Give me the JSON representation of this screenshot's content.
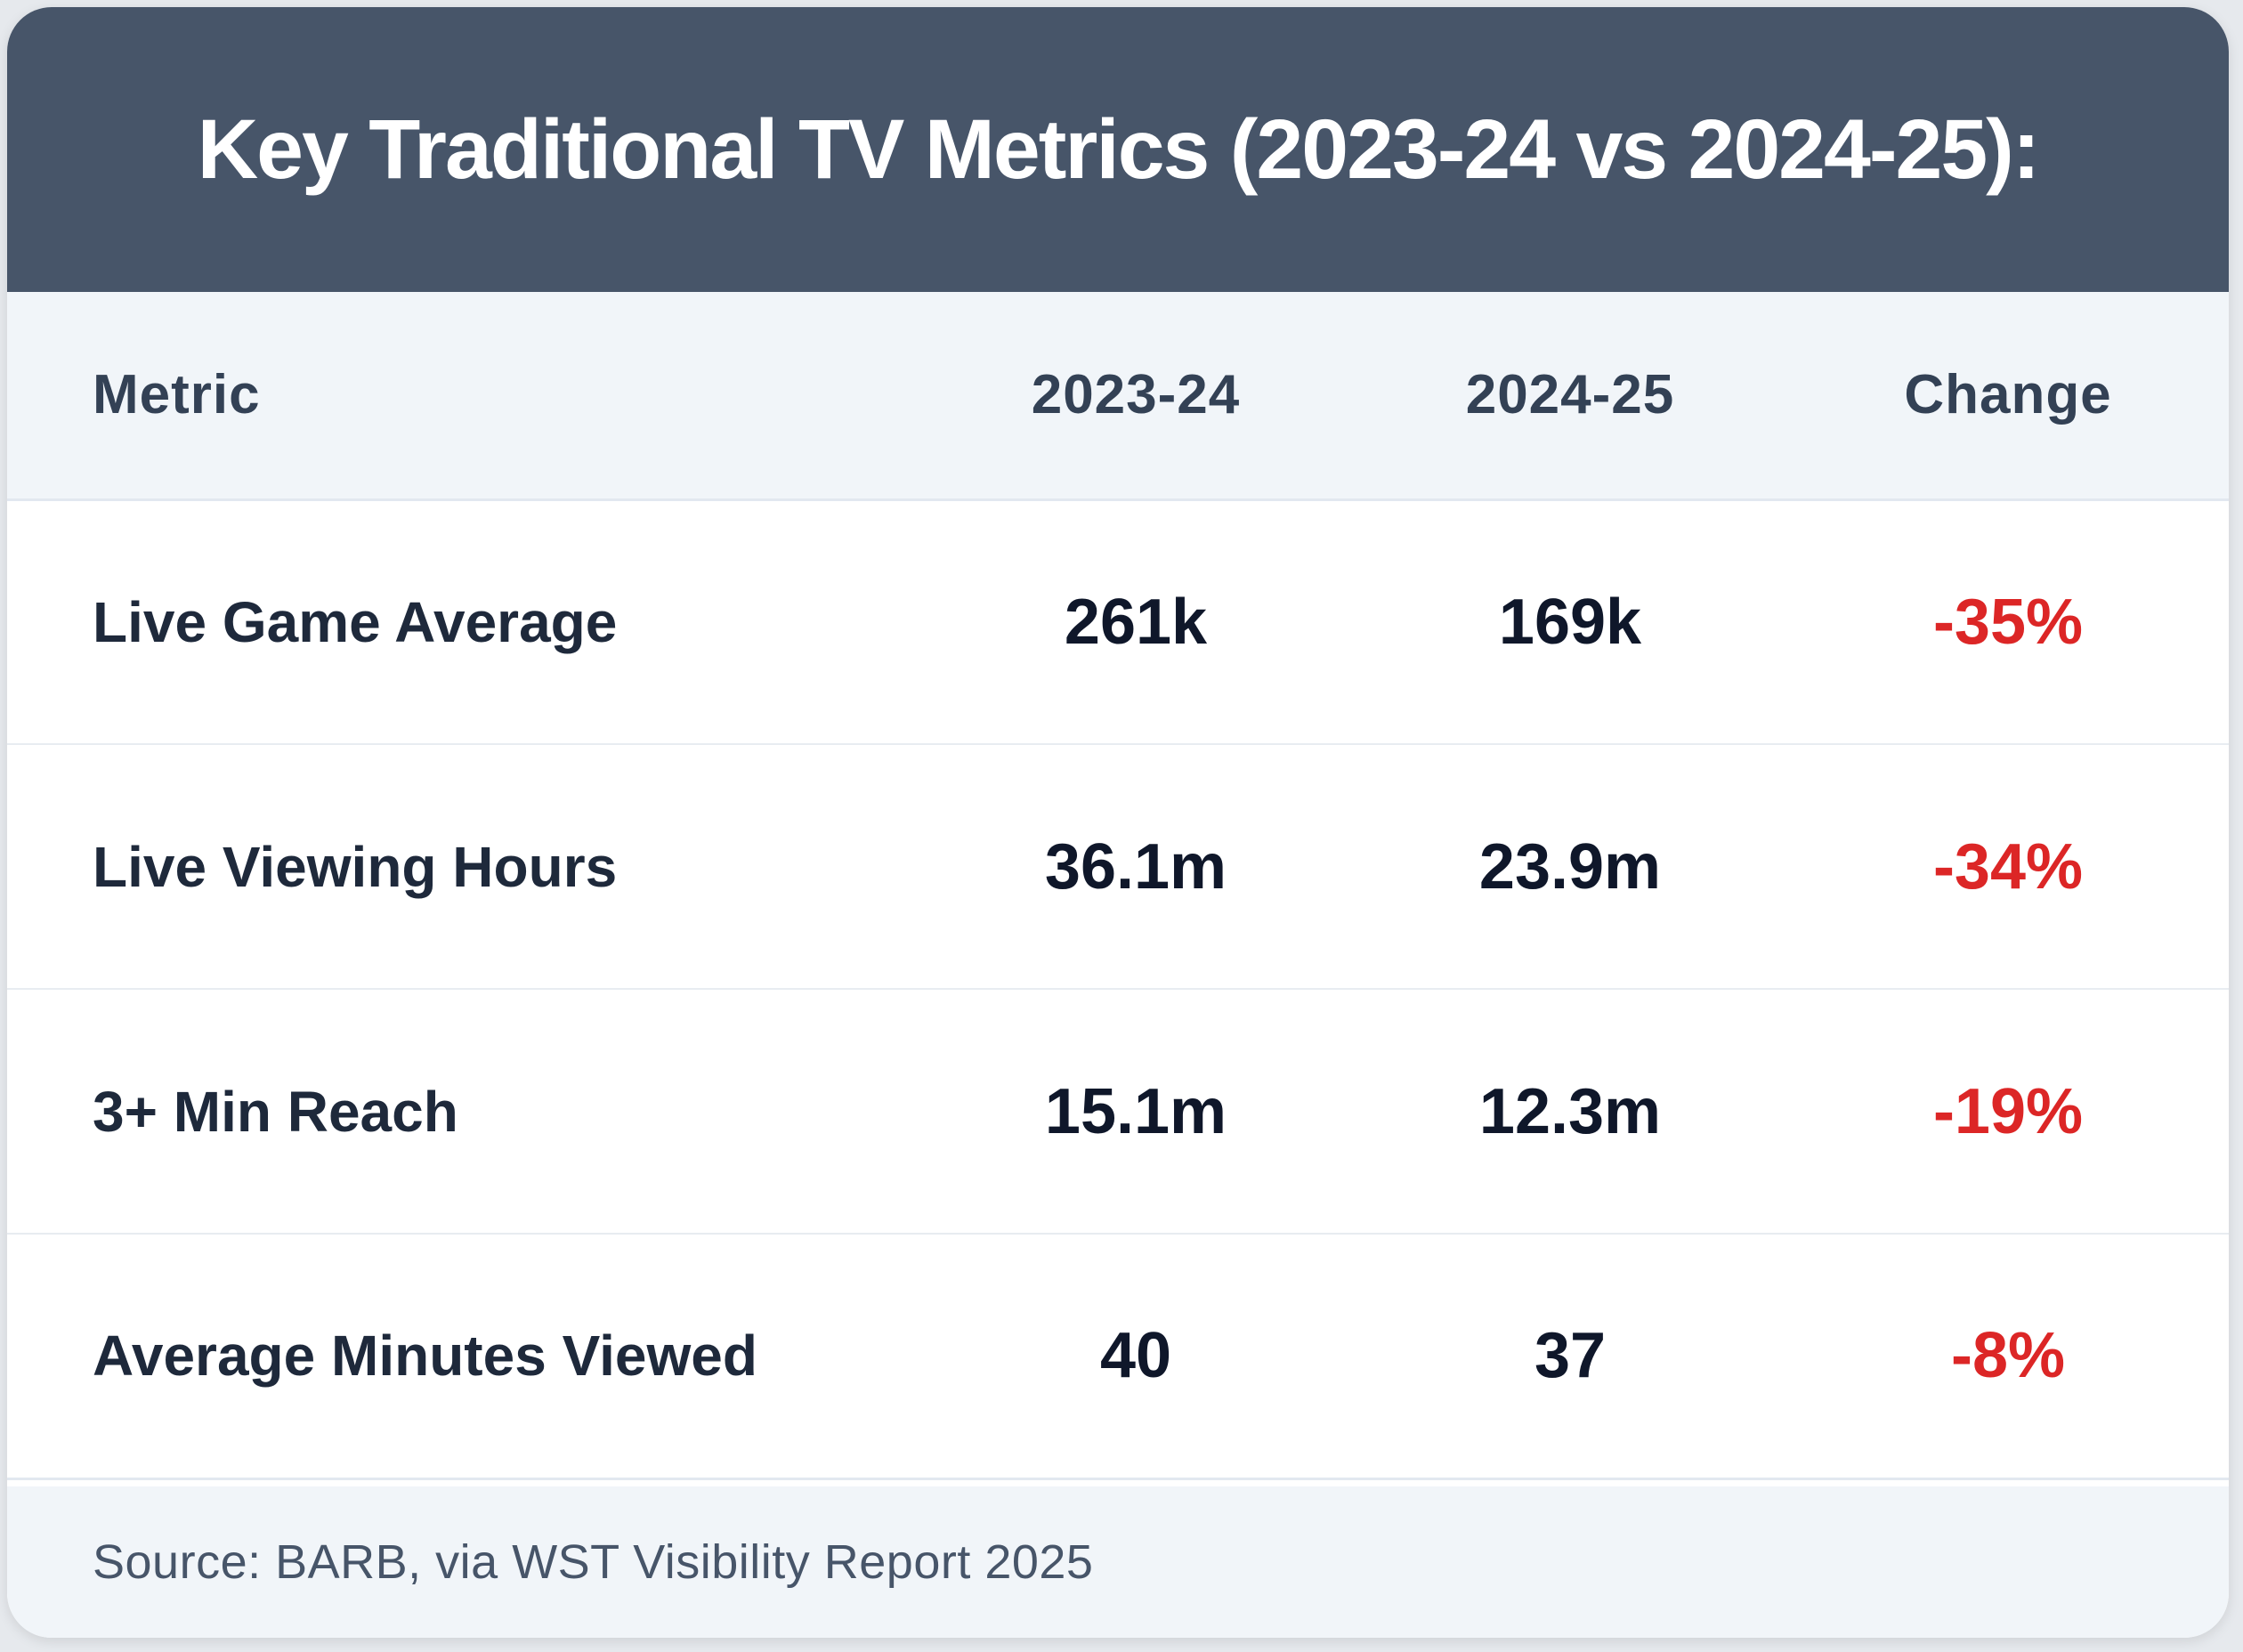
{
  "chart_data": {
    "type": "table",
    "title": "Key Traditional TV Metrics (2023-24 vs 2024-25):",
    "columns": [
      "Metric",
      "2023-24",
      "2024-25",
      "Change"
    ],
    "rows": [
      {
        "metric": "Live Game Average",
        "y2023_24": "261k",
        "y2024_25": "169k",
        "change": "-35%"
      },
      {
        "metric": "Live Viewing Hours",
        "y2023_24": "36.1m",
        "y2024_25": "23.9m",
        "change": "-34%"
      },
      {
        "metric": "3+ Min Reach",
        "y2023_24": "15.1m",
        "y2024_25": "12.3m",
        "change": "-19%"
      },
      {
        "metric": "Average Minutes Viewed",
        "y2023_24": "40",
        "y2024_25": "37",
        "change": "-8%"
      }
    ],
    "source": "Source: BARB, via WST Visibility Report 2025"
  },
  "colors": {
    "header_bg": "#475569",
    "negative_change": "#dc2626",
    "table_header_bg": "#f1f5f9"
  }
}
